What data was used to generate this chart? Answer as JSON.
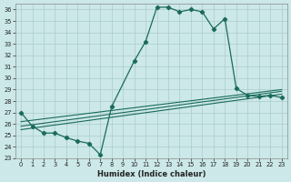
{
  "xlabel": "Humidex (Indice chaleur)",
  "bg_color": "#cce8e8",
  "grid_color": "#aacccc",
  "line_color": "#1a6b5a",
  "xlim": [
    -0.5,
    23.5
  ],
  "ylim": [
    23,
    36.5
  ],
  "yticks": [
    23,
    24,
    25,
    26,
    27,
    28,
    29,
    30,
    31,
    32,
    33,
    34,
    35,
    36
  ],
  "xticks": [
    0,
    1,
    2,
    3,
    4,
    5,
    6,
    7,
    8,
    9,
    10,
    11,
    12,
    13,
    14,
    15,
    16,
    17,
    18,
    19,
    20,
    21,
    22,
    23
  ],
  "main_series": {
    "x": [
      0,
      1,
      2,
      3,
      4,
      5,
      6,
      7,
      8,
      10,
      11,
      12,
      13,
      14,
      15,
      16,
      17,
      18,
      19,
      20,
      21,
      22,
      23
    ],
    "y": [
      27.0,
      25.8,
      25.2,
      25.2,
      24.8,
      24.5,
      24.3,
      23.3,
      27.5,
      31.5,
      33.2,
      36.2,
      36.2,
      35.8,
      36.0,
      35.8,
      34.3,
      35.2,
      29.1,
      28.5,
      28.4,
      28.5,
      28.3
    ]
  },
  "flat_lines": [
    {
      "x0": 0,
      "x1": 23,
      "y0": 25.5,
      "y1": 28.6
    },
    {
      "x0": 0,
      "x1": 23,
      "y0": 25.8,
      "y1": 28.85
    },
    {
      "x0": 0,
      "x1": 23,
      "y0": 26.2,
      "y1": 29.0
    }
  ]
}
